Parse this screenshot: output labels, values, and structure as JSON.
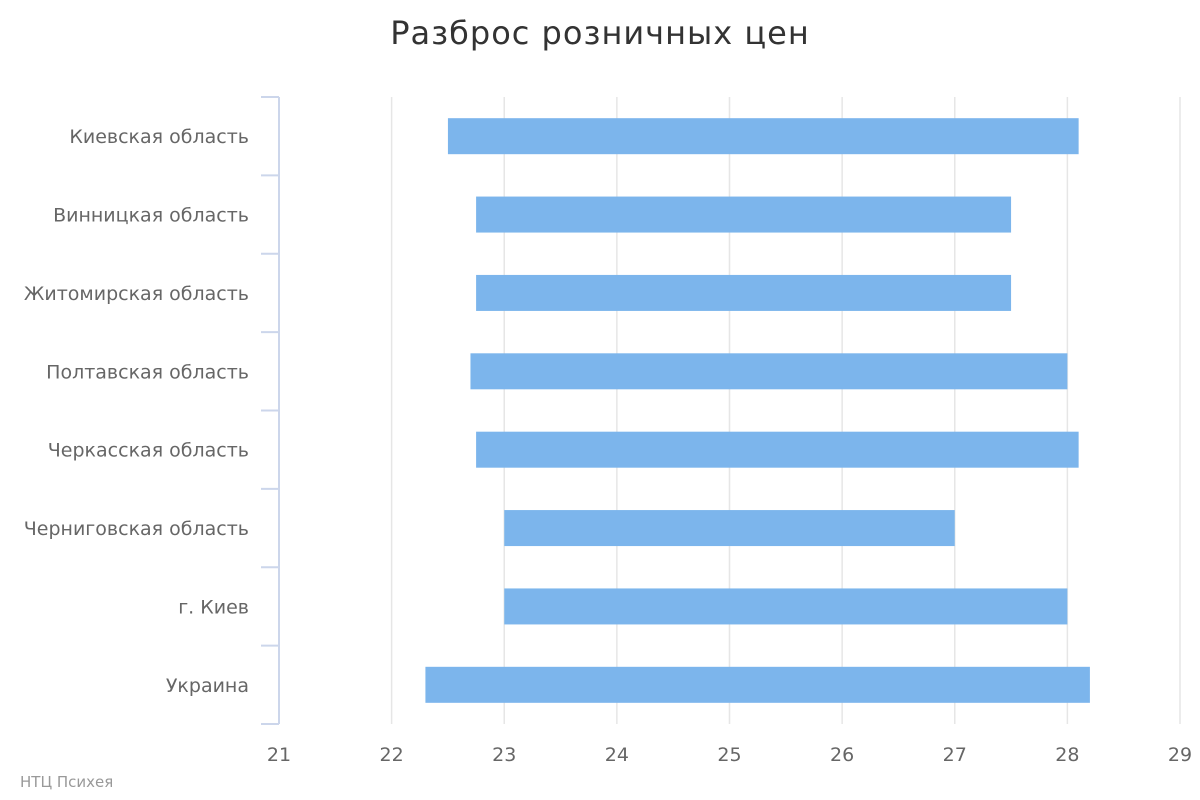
{
  "chart_data": {
    "type": "bar",
    "orientation": "horizontal",
    "subtype": "range",
    "title": "Разброс розничных цен",
    "categories": [
      "Киевская область",
      "Винницкая область",
      "Житомирская область",
      "Полтавская область",
      "Черкасская область",
      "Черниговская область",
      "г. Киев",
      "Украина"
    ],
    "series": [
      {
        "low": [
          22.5,
          22.75,
          22.75,
          22.7,
          22.75,
          23.0,
          23.0,
          22.3
        ],
        "high": [
          28.1,
          27.5,
          27.5,
          28.0,
          28.1,
          27.0,
          28.0,
          28.2
        ]
      }
    ],
    "xlim": [
      21,
      29
    ],
    "xticks": [
      "21",
      "22",
      "23",
      "24",
      "25",
      "26",
      "27",
      "28",
      "29"
    ],
    "grid": true,
    "legend": "none",
    "bar_color": "#7cb5ec",
    "grid_color": "#e6e6e6",
    "axis_color": "#ccd6eb",
    "label_color": "#666666"
  },
  "credits": "НТЦ Психея"
}
